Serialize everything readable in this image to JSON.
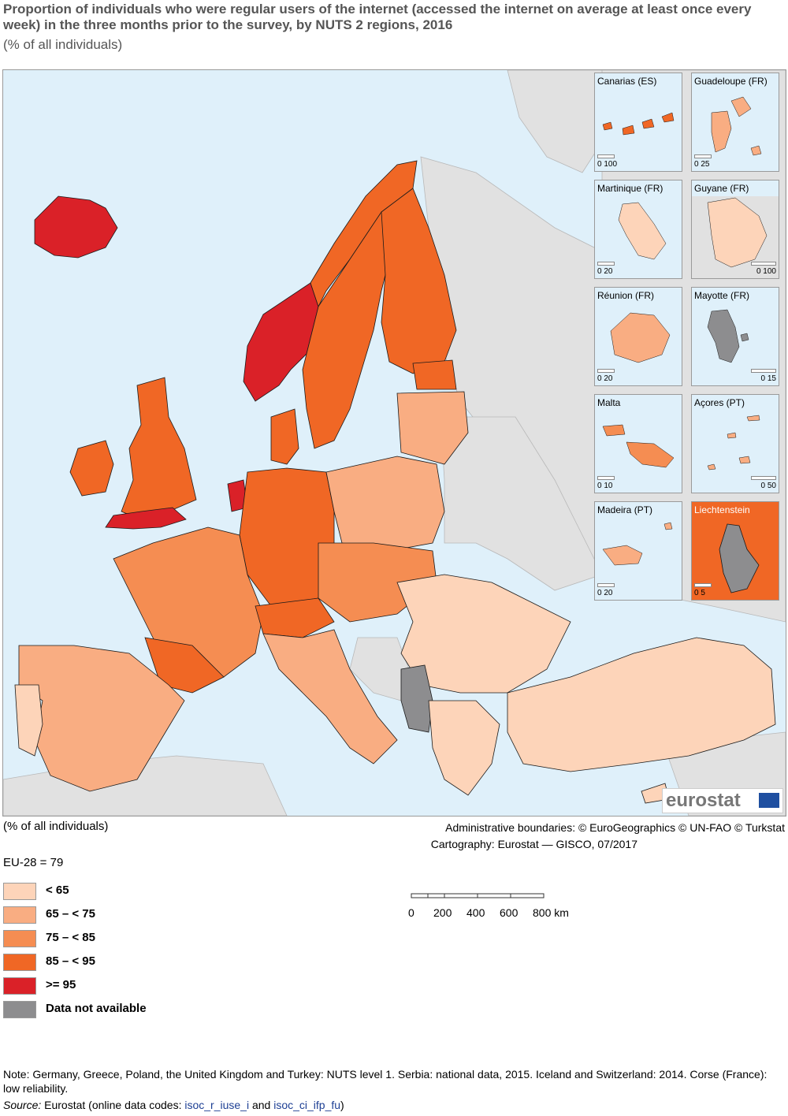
{
  "header": {
    "title": "Proportion of individuals who were regular users of the internet (accessed the internet on average at least once every week) in the three months prior to the survey, by NUTS 2 regions, 2016",
    "subtitle": "(% of all individuals)"
  },
  "colors": {
    "sea": "#dff0fa",
    "non_covered": "#e1e1e1",
    "lt65": "#fdd4b9",
    "c65_75": "#f9ad82",
    "c75_85": "#f58d52",
    "c85_95": "#f06725",
    "ge95": "#da2128",
    "na": "#8d8d8f",
    "border": "#1a1a1a"
  },
  "insets": [
    {
      "name": "Canarias (ES)",
      "scale": "0 100"
    },
    {
      "name": "Guadeloupe (FR)",
      "scale": "0 25"
    },
    {
      "name": "Martinique (FR)",
      "scale": "0 20"
    },
    {
      "name": "Guyane (FR)",
      "scale": "0 100"
    },
    {
      "name": "Réunion (FR)",
      "scale": "0 20"
    },
    {
      "name": "Mayotte (FR)",
      "scale": "0 15"
    },
    {
      "name": "Malta",
      "scale": "0 10"
    },
    {
      "name": "Açores (PT)",
      "scale": "0 50"
    },
    {
      "name": "Madeira (PT)",
      "scale": "0 20"
    },
    {
      "name": "Liechtenstein",
      "scale": "0 5"
    }
  ],
  "logo": "eurostat",
  "legend": {
    "unit": "(% of all individuals)",
    "eu_value": "EU-28 = 79",
    "items": [
      {
        "label": "< 65"
      },
      {
        "label": "65 – < 75"
      },
      {
        "label": "75 – < 85"
      },
      {
        "label": "85 – < 95"
      },
      {
        "label": ">= 95"
      },
      {
        "label": "Data not available"
      }
    ]
  },
  "credits": {
    "boundaries": "Administrative boundaries: © EuroGeographics © UN-FAO © Turkstat",
    "cartography": "Cartography: Eurostat — GISCO, 07/2017"
  },
  "scale_bar": {
    "labels": [
      "0",
      "200",
      "400",
      "600",
      "800 km"
    ]
  },
  "footer": {
    "note": "Note: Germany, Greece, Poland, the United Kingdom and Turkey: NUTS level 1. Serbia: national data, 2015. Iceland and Switzerland: 2014. Corse (France): low reliability.",
    "source_label": "Source:",
    "source_text": " Eurostat (online data codes: ",
    "code1": "isoc_r_iuse_i",
    "and": " and ",
    "code2": "isoc_ci_ifp_fu",
    "close": ")"
  }
}
